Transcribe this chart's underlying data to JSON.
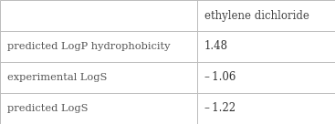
{
  "col_header": "ethylene dichloride",
  "rows": [
    {
      "label": "predicted LogP hydrophobicity",
      "value": "1.48"
    },
    {
      "label": "experimental LogS",
      "value": "– 1.06"
    },
    {
      "label": "predicted LogS",
      "value": "– 1.22"
    }
  ],
  "col_split": 0.588,
  "background_color": "#ffffff",
  "border_color": "#bbbbbb",
  "header_text_color": "#444444",
  "row_label_color": "#555555",
  "row_value_color": "#333333",
  "font_size_header": 8.5,
  "font_size_label": 8.2,
  "font_size_value": 8.5,
  "fig_width": 3.67,
  "fig_height": 1.36,
  "dpi": 100
}
